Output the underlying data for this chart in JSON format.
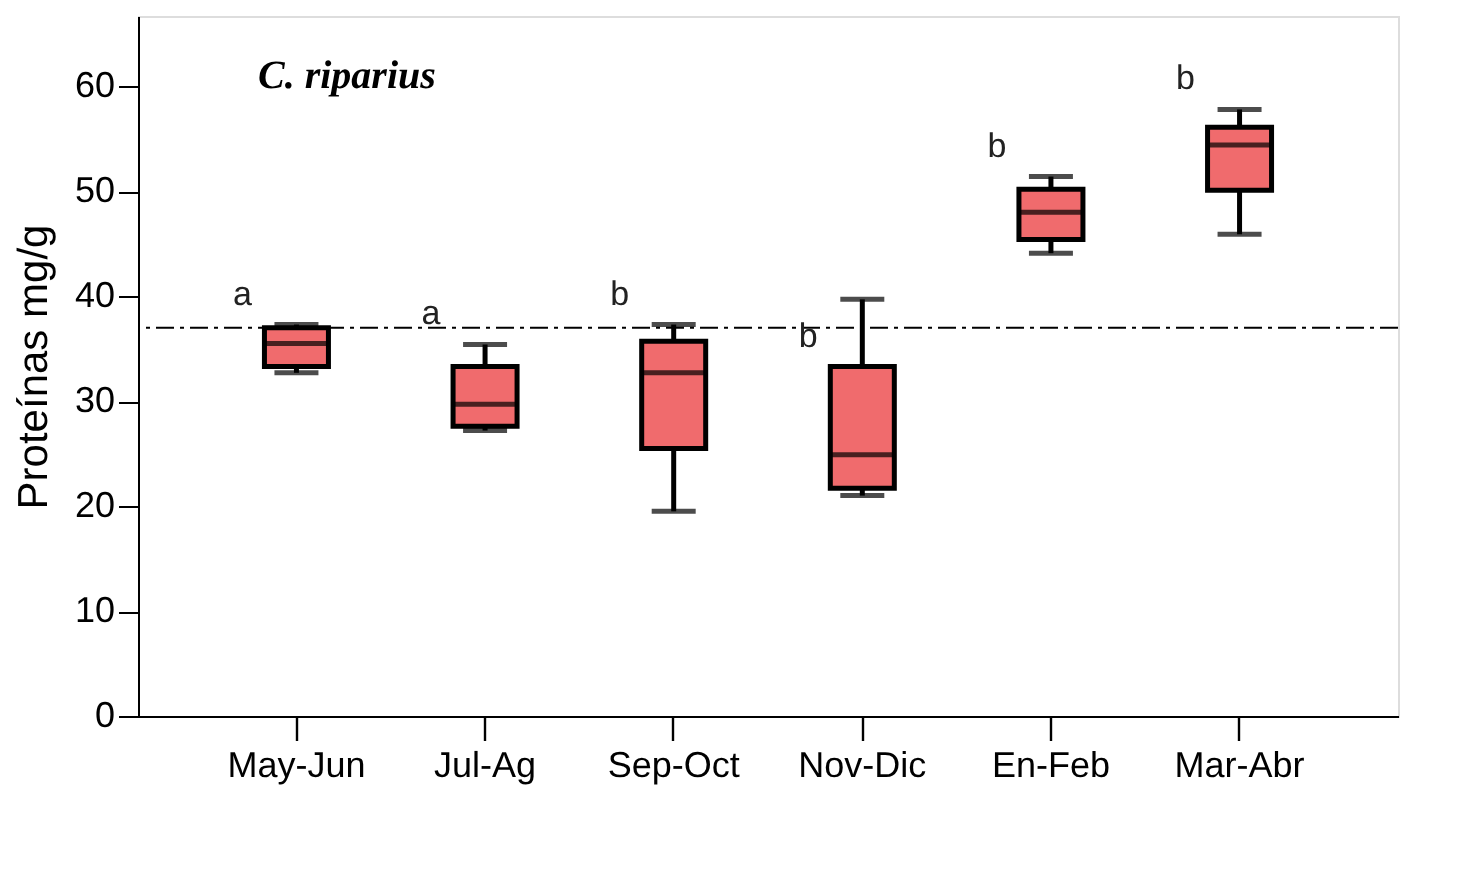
{
  "chart_data": {
    "type": "box",
    "title": "C. riparius",
    "ylabel": "Proteínas mg/g",
    "categories": [
      "May-Jun",
      "Jul-Ag",
      "Sep-Oct",
      "Nov-Dic",
      "En-Feb",
      "Mar-Abr"
    ],
    "color": "#f06b6d",
    "boxes": [
      {
        "low": 32.7,
        "q1": 33.3,
        "median": 35.5,
        "q3": 37.0,
        "high": 37.3
      },
      {
        "low": 27.2,
        "q1": 27.6,
        "median": 29.7,
        "q3": 33.3,
        "high": 35.4
      },
      {
        "low": 19.5,
        "q1": 25.5,
        "median": 32.7,
        "q3": 35.7,
        "high": 37.3
      },
      {
        "low": 21.0,
        "q1": 21.7,
        "median": 24.9,
        "q3": 33.3,
        "high": 39.7
      },
      {
        "low": 44.1,
        "q1": 45.4,
        "median": 48.0,
        "q3": 50.2,
        "high": 51.4
      },
      {
        "low": 45.9,
        "q1": 50.1,
        "median": 54.4,
        "q3": 56.1,
        "high": 57.8
      }
    ],
    "ylim": [
      0,
      66.7
    ],
    "yticks": [
      0,
      10,
      20,
      30,
      40,
      50,
      60
    ],
    "ref_lines": [
      {
        "axis": "y",
        "value": 37.0,
        "line_style": "dashdot",
        "color": "#000000"
      }
    ],
    "annotations": [
      {
        "text": "a",
        "x": "May-Jun",
        "y": 37.3
      },
      {
        "text": "a",
        "x": "Jul-Ag",
        "y": 35.4
      },
      {
        "text": "b",
        "x": "Sep-Oct",
        "y": 37.3
      },
      {
        "text": "b",
        "x": "Nov-Dic",
        "y": 33.3
      },
      {
        "text": "b",
        "x": "En-Feb",
        "y": 51.4
      },
      {
        "text": "b",
        "x": "Mar-Abr",
        "y": 57.8
      }
    ],
    "grid": false
  }
}
